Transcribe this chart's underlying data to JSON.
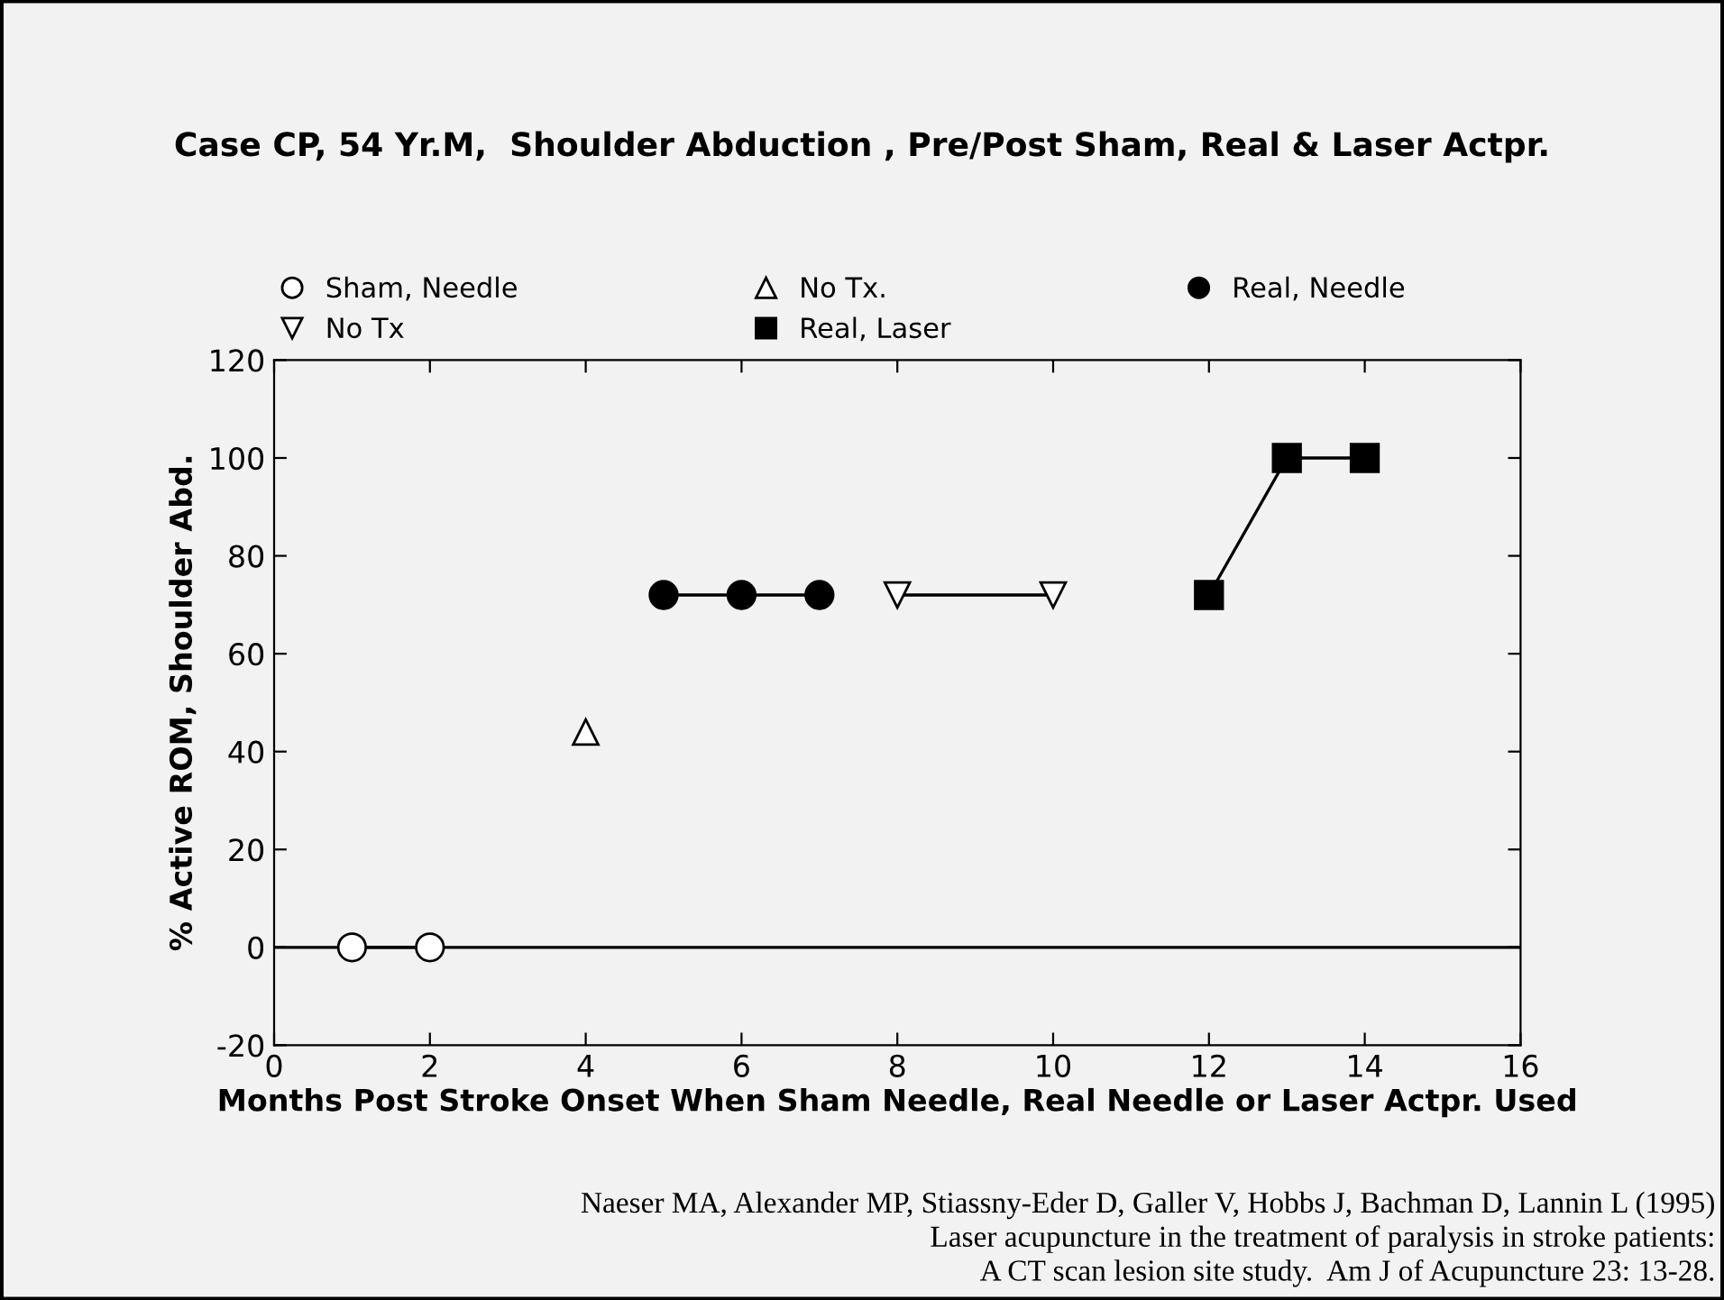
{
  "chart_data": {
    "type": "line",
    "title": "Case CP, 54 Yr.M,  Shoulder Abduction , Pre/Post Sham, Real & Laser Actpr.",
    "xlabel": "Months Post Stroke Onset When Sham Needle, Real Needle or Laser Actpr. Used",
    "ylabel": "% Active ROM, Shoulder Abd.",
    "series": [
      {
        "name": "Sham, Needle",
        "color": "#000000",
        "marker": "circle-open",
        "x": [
          1,
          2
        ],
        "values": [
          0,
          0
        ]
      },
      {
        "name": "No Tx.",
        "color": "#000000",
        "marker": "triangle-open",
        "x": [
          4
        ],
        "values": [
          44
        ]
      },
      {
        "name": "Real, Needle",
        "color": "#000000",
        "marker": "circle",
        "x": [
          5,
          6,
          7
        ],
        "values": [
          72,
          72,
          72
        ]
      },
      {
        "name": "No Tx",
        "color": "#000000",
        "marker": "triangle-down-open",
        "x": [
          8,
          10
        ],
        "values": [
          72,
          72
        ]
      },
      {
        "name": "Real, Laser",
        "color": "#000000",
        "marker": "square",
        "x": [
          12,
          13,
          14
        ],
        "values": [
          72,
          100,
          100
        ]
      }
    ],
    "xlim": [
      0,
      16
    ],
    "xticks": [
      0,
      2,
      4,
      6,
      8,
      10,
      12,
      14,
      16
    ],
    "ylim": [
      -20,
      120
    ],
    "yticks": [
      -20,
      0,
      20,
      40,
      60,
      80,
      100,
      120
    ],
    "ref_lines": [
      {
        "axis": "y",
        "value": 0,
        "color": "#000000",
        "line_style": "solid"
      }
    ],
    "grid": false,
    "legend": "top",
    "line_style": "solid",
    "annotations": [
      "Naeser MA, Alexander MP, Stiassny-Eder D, Galler V, Hobbs J, Bachman D, Lannin L (1995)\nLaser acupuncture in the treatment of paralysis in stroke patients:\nA CT scan lesion site study.  Am J of Acupuncture 23: 13-28."
    ]
  }
}
